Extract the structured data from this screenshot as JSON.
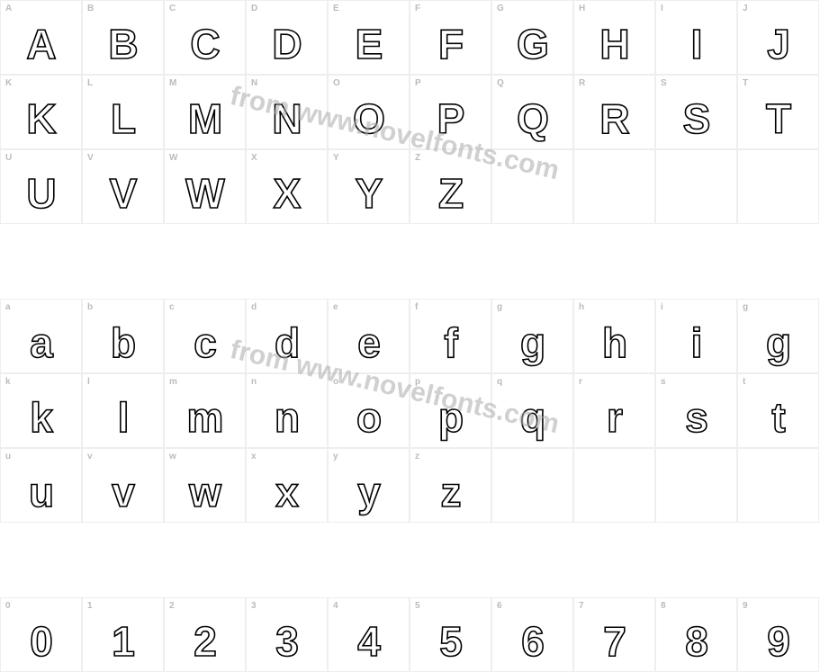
{
  "watermark_text": "from www.novelfonts.com",
  "watermark_color": "#aaaaaa",
  "cell_border_color": "#eeeeee",
  "label_color": "#bbbbbb",
  "glyph_stroke_color": "#000000",
  "glyph_fill_color": "#ffffff",
  "background_color": "#ffffff",
  "label_fontsize": 10,
  "glyph_fontsize": 46,
  "watermark_fontsize": 30,
  "rows": [
    {
      "cells": [
        {
          "label": "A",
          "glyph": "A"
        },
        {
          "label": "B",
          "glyph": "B"
        },
        {
          "label": "C",
          "glyph": "C"
        },
        {
          "label": "D",
          "glyph": "D"
        },
        {
          "label": "E",
          "glyph": "E"
        },
        {
          "label": "F",
          "glyph": "F"
        },
        {
          "label": "G",
          "glyph": "G"
        },
        {
          "label": "H",
          "glyph": "H"
        },
        {
          "label": "I",
          "glyph": "I"
        },
        {
          "label": "J",
          "glyph": "J"
        }
      ]
    },
    {
      "cells": [
        {
          "label": "K",
          "glyph": "K"
        },
        {
          "label": "L",
          "glyph": "L"
        },
        {
          "label": "M",
          "glyph": "M"
        },
        {
          "label": "N",
          "glyph": "N"
        },
        {
          "label": "O",
          "glyph": "O"
        },
        {
          "label": "P",
          "glyph": "P"
        },
        {
          "label": "Q",
          "glyph": "Q"
        },
        {
          "label": "R",
          "glyph": "R"
        },
        {
          "label": "S",
          "glyph": "S"
        },
        {
          "label": "T",
          "glyph": "T"
        }
      ]
    },
    {
      "cells": [
        {
          "label": "U",
          "glyph": "U"
        },
        {
          "label": "V",
          "glyph": "V"
        },
        {
          "label": "W",
          "glyph": "W"
        },
        {
          "label": "X",
          "glyph": "X"
        },
        {
          "label": "Y",
          "glyph": "Y"
        },
        {
          "label": "Z",
          "glyph": "Z"
        },
        {
          "label": "",
          "glyph": ""
        },
        {
          "label": "",
          "glyph": ""
        },
        {
          "label": "",
          "glyph": ""
        },
        {
          "label": "",
          "glyph": ""
        }
      ]
    },
    {
      "gap": true
    },
    {
      "cells": [
        {
          "label": "a",
          "glyph": "a"
        },
        {
          "label": "b",
          "glyph": "b"
        },
        {
          "label": "c",
          "glyph": "c"
        },
        {
          "label": "d",
          "glyph": "d"
        },
        {
          "label": "e",
          "glyph": "e"
        },
        {
          "label": "f",
          "glyph": "f"
        },
        {
          "label": "g",
          "glyph": "g"
        },
        {
          "label": "h",
          "glyph": "h"
        },
        {
          "label": "i",
          "glyph": "i"
        },
        {
          "label": "g",
          "glyph": "g"
        }
      ]
    },
    {
      "cells": [
        {
          "label": "k",
          "glyph": "k"
        },
        {
          "label": "l",
          "glyph": "l"
        },
        {
          "label": "m",
          "glyph": "m"
        },
        {
          "label": "n",
          "glyph": "n"
        },
        {
          "label": "o",
          "glyph": "o"
        },
        {
          "label": "p",
          "glyph": "p"
        },
        {
          "label": "q",
          "glyph": "q"
        },
        {
          "label": "r",
          "glyph": "r"
        },
        {
          "label": "s",
          "glyph": "s"
        },
        {
          "label": "t",
          "glyph": "t"
        }
      ]
    },
    {
      "cells": [
        {
          "label": "u",
          "glyph": "u"
        },
        {
          "label": "v",
          "glyph": "v"
        },
        {
          "label": "w",
          "glyph": "w"
        },
        {
          "label": "x",
          "glyph": "x"
        },
        {
          "label": "y",
          "glyph": "y"
        },
        {
          "label": "z",
          "glyph": "z"
        },
        {
          "label": "",
          "glyph": ""
        },
        {
          "label": "",
          "glyph": ""
        },
        {
          "label": "",
          "glyph": ""
        },
        {
          "label": "",
          "glyph": ""
        }
      ]
    },
    {
      "gap": true
    },
    {
      "cells": [
        {
          "label": "0",
          "glyph": "0"
        },
        {
          "label": "1",
          "glyph": "1"
        },
        {
          "label": "2",
          "glyph": "2"
        },
        {
          "label": "3",
          "glyph": "3"
        },
        {
          "label": "4",
          "glyph": "4"
        },
        {
          "label": "5",
          "glyph": "5"
        },
        {
          "label": "6",
          "glyph": "6"
        },
        {
          "label": "7",
          "glyph": "7"
        },
        {
          "label": "8",
          "glyph": "8"
        },
        {
          "label": "9",
          "glyph": "9"
        }
      ]
    }
  ]
}
